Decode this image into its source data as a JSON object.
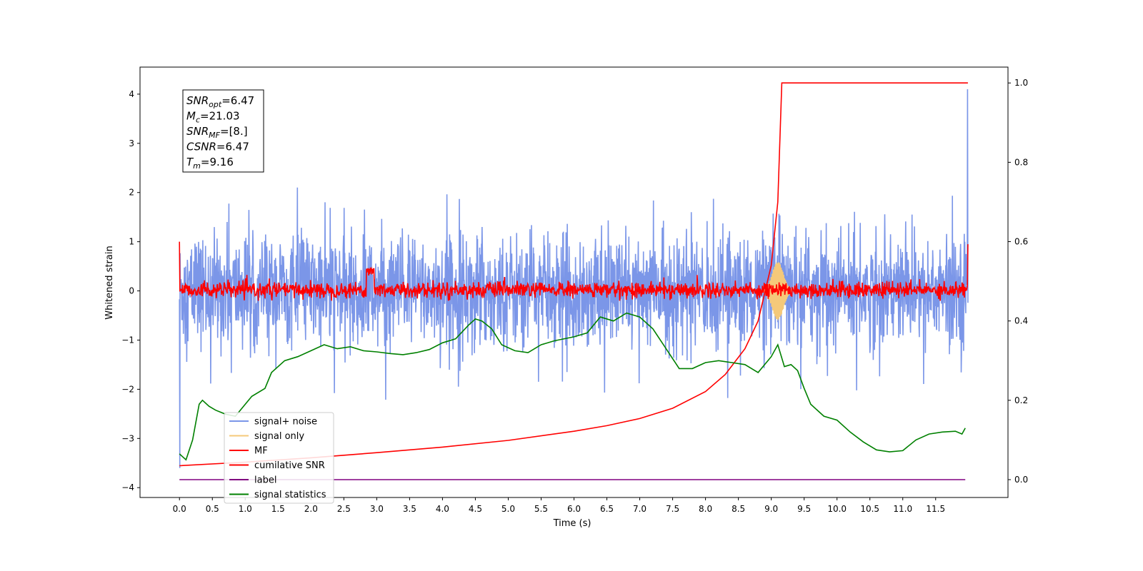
{
  "chart_data": {
    "type": "line",
    "xlabel": "Time (s)",
    "ylabel": "Whitened strain",
    "xlim": [
      -0.6,
      12.6
    ],
    "ylim": [
      -4.2,
      4.55
    ],
    "y2lim": [
      -0.045,
      1.04
    ],
    "x_ticks": [
      "0.0",
      "0.5",
      "1.0",
      "1.5",
      "2.0",
      "2.5",
      "3.0",
      "3.5",
      "4.0",
      "4.5",
      "5.0",
      "5.5",
      "6.0",
      "6.5",
      "7.0",
      "7.5",
      "8.0",
      "8.5",
      "9.0",
      "9.5",
      "10.0",
      "10.5",
      "11.0",
      "11.5"
    ],
    "y_ticks": [
      "4",
      "3",
      "2",
      "1",
      "0",
      "−1",
      "−2",
      "−3",
      "−4"
    ],
    "y2_ticks": [
      "1.0",
      "0.8",
      "0.6",
      "0.4",
      "0.2",
      "0.0"
    ],
    "grid": false,
    "legend_position": "lower-left",
    "annotation": [
      {
        "base": "SNR",
        "sub": "opt",
        "value": "=6.47"
      },
      {
        "base": "M",
        "sub": "c",
        "value": "=21.03"
      },
      {
        "base": "SNR",
        "sub": "MF",
        "value": "=[8.]"
      },
      {
        "base": "CSNR",
        "sub": "",
        "value": "=6.47"
      },
      {
        "base": "T",
        "sub": "m",
        "value": "=9.16"
      }
    ],
    "series": [
      {
        "name": "signal+ noise",
        "color": "#7b96e8",
        "axis": "left",
        "description_values": {
          "noise_band": [
            -1.4,
            1.4
          ],
          "start": 0.0,
          "end": 11.99
        }
      },
      {
        "name": "signal only",
        "color": "#f5c97a",
        "axis": "left",
        "burst_center": 9.1,
        "burst_amplitude": 0.6
      },
      {
        "name": "MF",
        "color": "#ff0000",
        "axis": "left",
        "base_level": 0.0,
        "noise_band": [
          -0.15,
          0.2
        ],
        "bump_at": 2.9
      },
      {
        "name": "cumilative SNR",
        "color": "#ff0000",
        "axis": "right",
        "x": [
          0.0,
          1.0,
          2.0,
          3.0,
          4.0,
          5.0,
          6.0,
          6.5,
          7.0,
          7.5,
          8.0,
          8.3,
          8.6,
          8.8,
          9.0,
          9.1,
          9.16,
          11.99
        ],
        "y": [
          0.035,
          0.044,
          0.055,
          0.068,
          0.082,
          0.099,
          0.122,
          0.136,
          0.154,
          0.18,
          0.222,
          0.265,
          0.33,
          0.4,
          0.54,
          0.7,
          1.0,
          1.0
        ]
      },
      {
        "name": "label",
        "color": "#800080",
        "axis": "right",
        "x": [
          0.0,
          11.95
        ],
        "y": [
          0.0,
          0.0
        ]
      },
      {
        "name": "signal statistics",
        "color": "#008000",
        "axis": "right",
        "x": [
          0.0,
          0.1,
          0.2,
          0.3,
          0.35,
          0.45,
          0.55,
          0.7,
          0.85,
          1.0,
          1.1,
          1.3,
          1.4,
          1.6,
          1.8,
          2.0,
          2.2,
          2.4,
          2.6,
          2.8,
          3.0,
          3.2,
          3.4,
          3.6,
          3.8,
          4.0,
          4.2,
          4.4,
          4.5,
          4.6,
          4.75,
          4.9,
          5.1,
          5.3,
          5.5,
          5.7,
          6.0,
          6.2,
          6.4,
          6.6,
          6.8,
          7.0,
          7.2,
          7.4,
          7.5,
          7.6,
          7.8,
          8.0,
          8.2,
          8.4,
          8.6,
          8.8,
          8.9,
          9.0,
          9.1,
          9.2,
          9.3,
          9.4,
          9.5,
          9.6,
          9.8,
          10.0,
          10.2,
          10.4,
          10.6,
          10.8,
          11.0,
          11.2,
          11.4,
          11.6,
          11.8,
          11.9,
          11.95
        ],
        "y": [
          0.065,
          0.05,
          0.1,
          0.19,
          0.2,
          0.185,
          0.175,
          0.165,
          0.16,
          0.19,
          0.21,
          0.23,
          0.27,
          0.3,
          0.31,
          0.325,
          0.34,
          0.33,
          0.335,
          0.325,
          0.322,
          0.318,
          0.315,
          0.32,
          0.328,
          0.345,
          0.355,
          0.39,
          0.405,
          0.4,
          0.38,
          0.34,
          0.325,
          0.32,
          0.34,
          0.35,
          0.36,
          0.37,
          0.41,
          0.4,
          0.42,
          0.41,
          0.38,
          0.33,
          0.305,
          0.28,
          0.28,
          0.295,
          0.3,
          0.295,
          0.29,
          0.27,
          0.29,
          0.31,
          0.34,
          0.285,
          0.29,
          0.275,
          0.23,
          0.19,
          0.16,
          0.15,
          0.12,
          0.095,
          0.075,
          0.07,
          0.073,
          0.1,
          0.115,
          0.12,
          0.122,
          0.115,
          0.13
        ]
      }
    ]
  }
}
